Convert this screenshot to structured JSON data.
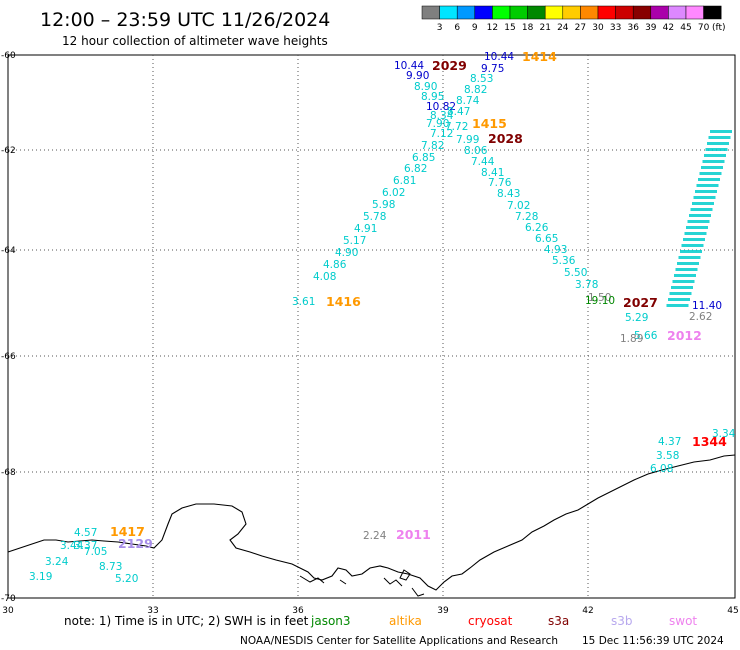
{
  "header": {
    "title": "12:00 – 23:59 UTC 11/26/2024",
    "subtitle": "12 hour collection of altimeter wave heights"
  },
  "colorbar": {
    "labels": [
      "3",
      "6",
      "9",
      "12",
      "15",
      "18",
      "21",
      "24",
      "27",
      "30",
      "33",
      "36",
      "39",
      "42",
      "45",
      "70"
    ],
    "unit": "(ft)",
    "colors": [
      "#7f7f7f",
      "#00e5ff",
      "#0099ff",
      "#0000ff",
      "#00ff00",
      "#00cc00",
      "#008800",
      "#ffff00",
      "#ffcc00",
      "#ff8800",
      "#ff0000",
      "#cc0000",
      "#880000",
      "#aa00aa",
      "#dd88ff",
      "#ff88ff",
      "#000000"
    ]
  },
  "axes": {
    "x_ticks": [
      "30",
      "33",
      "36",
      "39",
      "42",
      "45"
    ],
    "y_ticks": [
      "-60",
      "-62",
      "-64",
      "-66",
      "-68",
      "-70"
    ]
  },
  "orbit_labels": [
    {
      "text": "2029",
      "color": "#800000"
    },
    {
      "text": "1414",
      "color": "#ff9900"
    },
    {
      "text": "1415",
      "color": "#ff9900"
    },
    {
      "text": "2028",
      "color": "#800000"
    },
    {
      "text": "1416",
      "color": "#ff9900"
    },
    {
      "text": "2027",
      "color": "#800000"
    },
    {
      "text": "2012",
      "color": "#ee82ee"
    },
    {
      "text": "1344",
      "color": "#ff0000"
    },
    {
      "text": "1417",
      "color": "#ff9900"
    },
    {
      "text": "2129",
      "color": "#a78ee8"
    },
    {
      "text": "2011",
      "color": "#ee82ee"
    }
  ],
  "wave_values": [
    {
      "text": "10.44",
      "color": "#0000cc"
    },
    {
      "text": "9.90",
      "color": "#0000cc"
    },
    {
      "text": "8.90",
      "color": "#00cccc"
    },
    {
      "text": "8.95",
      "color": "#00cccc"
    },
    {
      "text": "10.82",
      "color": "#0000cc"
    },
    {
      "text": "8.34",
      "color": "#00cccc"
    },
    {
      "text": "7.90",
      "color": "#00cccc"
    },
    {
      "text": "7.12",
      "color": "#00cccc"
    },
    {
      "text": "7.82",
      "color": "#00cccc"
    },
    {
      "text": "6.85",
      "color": "#00cccc"
    },
    {
      "text": "6.82",
      "color": "#00cccc"
    },
    {
      "text": "6.81",
      "color": "#00cccc"
    },
    {
      "text": "6.02",
      "color": "#00cccc"
    },
    {
      "text": "5.98",
      "color": "#00cccc"
    },
    {
      "text": "5.78",
      "color": "#00cccc"
    },
    {
      "text": "4.91",
      "color": "#00cccc"
    },
    {
      "text": "5.17",
      "color": "#00cccc"
    },
    {
      "text": "4.90",
      "color": "#00cccc"
    },
    {
      "text": "4.86",
      "color": "#00cccc"
    },
    {
      "text": "4.08",
      "color": "#00cccc"
    },
    {
      "text": "3.61",
      "color": "#00cccc"
    },
    {
      "text": "10.44",
      "color": "#0000cc"
    },
    {
      "text": "9.75",
      "color": "#0000cc"
    },
    {
      "text": "8.53",
      "color": "#00cccc"
    },
    {
      "text": "8.82",
      "color": "#00cccc"
    },
    {
      "text": "8.74",
      "color": "#00cccc"
    },
    {
      "text": "8.47",
      "color": "#00cccc"
    },
    {
      "text": "7.72",
      "color": "#00cccc"
    },
    {
      "text": "7.99",
      "color": "#00cccc"
    },
    {
      "text": "8.06",
      "color": "#00cccc"
    },
    {
      "text": "7.44",
      "color": "#00cccc"
    },
    {
      "text": "8.41",
      "color": "#00cccc"
    },
    {
      "text": "7.76",
      "color": "#00cccc"
    },
    {
      "text": "8.43",
      "color": "#00cccc"
    },
    {
      "text": "7.02",
      "color": "#00cccc"
    },
    {
      "text": "7.28",
      "color": "#00cccc"
    },
    {
      "text": "6.26",
      "color": "#00cccc"
    },
    {
      "text": "6.65",
      "color": "#00cccc"
    },
    {
      "text": "4.93",
      "color": "#00cccc"
    },
    {
      "text": "5.36",
      "color": "#00cccc"
    },
    {
      "text": "5.50",
      "color": "#00cccc"
    },
    {
      "text": "3.78",
      "color": "#00cccc"
    },
    {
      "text": "1.50",
      "color": "#808080"
    },
    {
      "text": "19.10",
      "color": "#008800"
    },
    {
      "text": "11.40",
      "color": "#0000cc"
    },
    {
      "text": "5.29",
      "color": "#00cccc"
    },
    {
      "text": "2.62",
      "color": "#808080"
    },
    {
      "text": "5.66",
      "color": "#00cccc"
    },
    {
      "text": "1.89",
      "color": "#808080"
    },
    {
      "text": "4.37",
      "color": "#00cccc"
    },
    {
      "text": "3.58",
      "color": "#00cccc"
    },
    {
      "text": "6.08",
      "color": "#00cccc"
    },
    {
      "text": "3.34",
      "color": "#00cccc"
    },
    {
      "text": "2.24",
      "color": "#808080"
    },
    {
      "text": "4.57",
      "color": "#00cccc"
    },
    {
      "text": "3.44",
      "color": "#00cccc"
    },
    {
      "text": "3.37",
      "color": "#00cccc"
    },
    {
      "text": "7.05",
      "color": "#00cccc"
    },
    {
      "text": "3.24",
      "color": "#00cccc"
    },
    {
      "text": "3.19",
      "color": "#00cccc"
    },
    {
      "text": "8.73",
      "color": "#00cccc"
    },
    {
      "text": "5.20",
      "color": "#00cccc"
    }
  ],
  "footer": {
    "note": "note:  1) Time is in UTC;  2) SWH is in feet",
    "satellites": [
      {
        "name": "jason3",
        "color": "#008800"
      },
      {
        "name": "altika",
        "color": "#ff9900"
      },
      {
        "name": "cryosat",
        "color": "#ff0000"
      },
      {
        "name": "s3a",
        "color": "#800000"
      },
      {
        "name": "s3b",
        "color": "#b7a8ee"
      },
      {
        "name": "swot",
        "color": "#ee82ee"
      }
    ],
    "credit": "NOAA/NESDIS Center for Satellite Applications and Research",
    "timestamp": "15 Dec 11:56:39 UTC 2024"
  }
}
